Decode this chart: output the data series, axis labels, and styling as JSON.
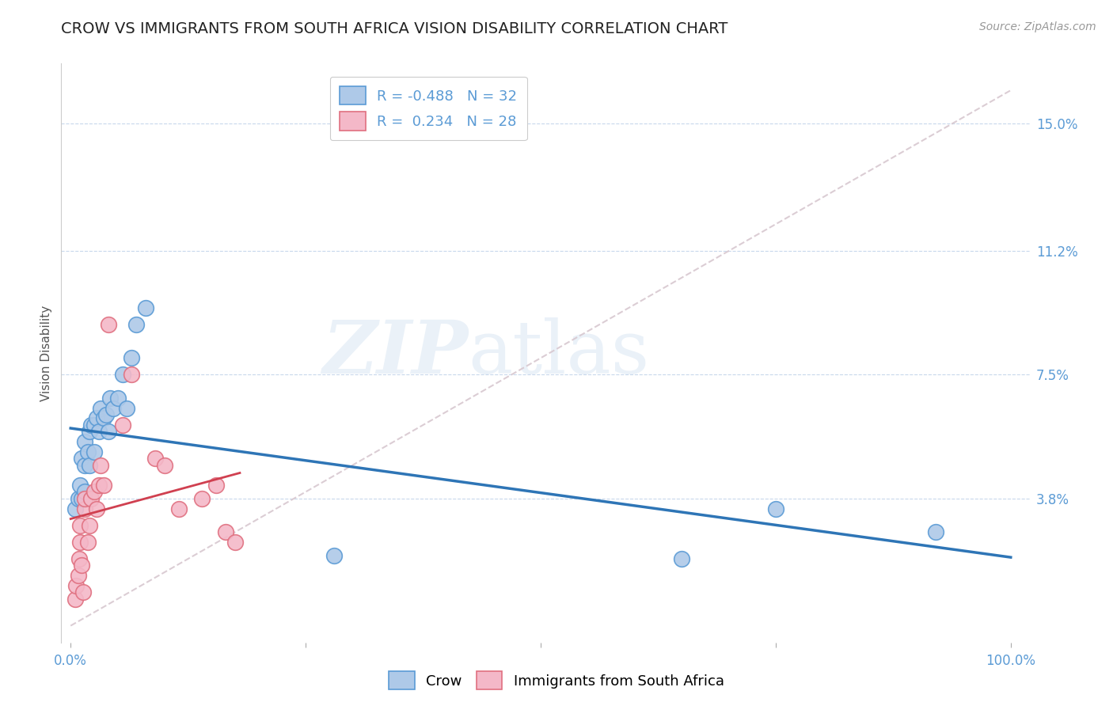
{
  "title": "CROW VS IMMIGRANTS FROM SOUTH AFRICA VISION DISABILITY CORRELATION CHART",
  "source": "Source: ZipAtlas.com",
  "ylabel": "Vision Disability",
  "xlim": [
    0.0,
    1.0
  ],
  "ylim": [
    0.0,
    0.16
  ],
  "yticks": [
    0.038,
    0.075,
    0.112,
    0.15
  ],
  "ytick_labels": [
    "3.8%",
    "7.5%",
    "11.2%",
    "15.0%"
  ],
  "crow_color": "#aec9e8",
  "crow_edge_color": "#5b9bd5",
  "immigrants_color": "#f4b8c8",
  "immigrants_edge_color": "#e07080",
  "trendline_crow_color": "#2e75b6",
  "trendline_immigrants_color": "#d04050",
  "diagonal_color": "#d8c8d0",
  "R_crow": -0.488,
  "N_crow": 32,
  "R_immigrants": 0.234,
  "N_immigrants": 28,
  "crow_x": [
    0.005,
    0.008,
    0.01,
    0.012,
    0.012,
    0.015,
    0.015,
    0.015,
    0.018,
    0.02,
    0.02,
    0.022,
    0.025,
    0.025,
    0.028,
    0.03,
    0.032,
    0.035,
    0.038,
    0.04,
    0.042,
    0.045,
    0.05,
    0.055,
    0.06,
    0.065,
    0.07,
    0.08,
    0.28,
    0.65,
    0.75,
    0.92
  ],
  "crow_y": [
    0.035,
    0.038,
    0.042,
    0.038,
    0.05,
    0.04,
    0.048,
    0.055,
    0.052,
    0.048,
    0.058,
    0.06,
    0.052,
    0.06,
    0.062,
    0.058,
    0.065,
    0.062,
    0.063,
    0.058,
    0.068,
    0.065,
    0.068,
    0.075,
    0.065,
    0.08,
    0.09,
    0.095,
    0.021,
    0.02,
    0.035,
    0.028
  ],
  "immigrants_x": [
    0.005,
    0.006,
    0.008,
    0.009,
    0.01,
    0.01,
    0.012,
    0.013,
    0.015,
    0.015,
    0.018,
    0.02,
    0.022,
    0.025,
    0.028,
    0.03,
    0.032,
    0.035,
    0.04,
    0.055,
    0.065,
    0.09,
    0.1,
    0.115,
    0.14,
    0.155,
    0.165,
    0.175
  ],
  "immigrants_y": [
    0.008,
    0.012,
    0.015,
    0.02,
    0.025,
    0.03,
    0.018,
    0.01,
    0.035,
    0.038,
    0.025,
    0.03,
    0.038,
    0.04,
    0.035,
    0.042,
    0.048,
    0.042,
    0.09,
    0.06,
    0.075,
    0.05,
    0.048,
    0.035,
    0.038,
    0.042,
    0.028,
    0.025
  ],
  "background_color": "#ffffff",
  "axis_color": "#5b9bd5",
  "title_fontsize": 14,
  "label_fontsize": 11,
  "tick_fontsize": 12,
  "source_fontsize": 10
}
